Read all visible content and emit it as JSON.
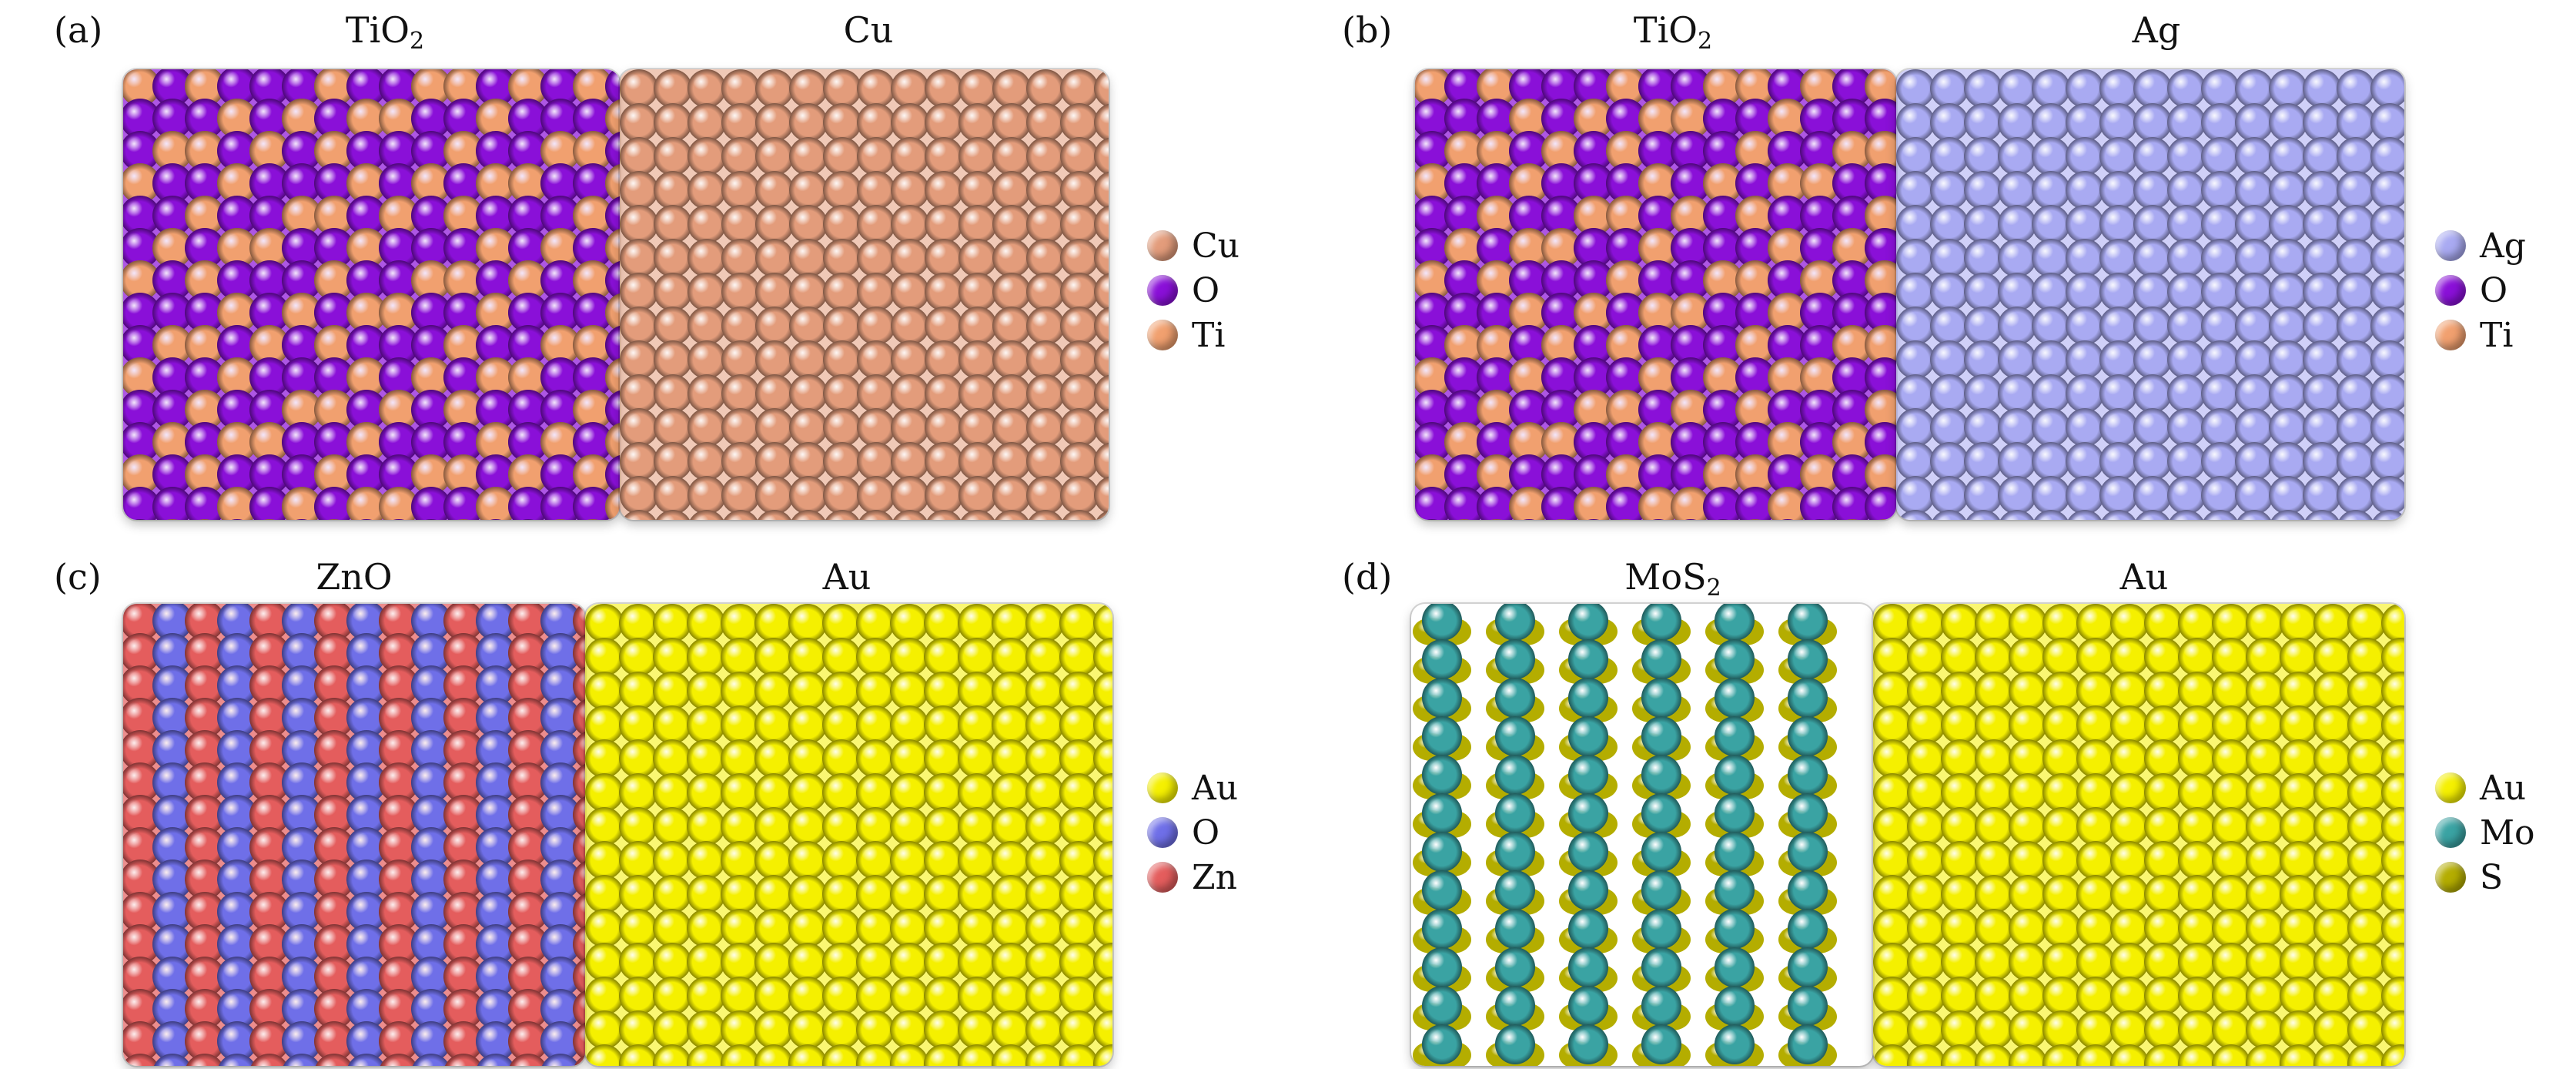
{
  "panels": [
    {
      "id": "a",
      "label": "(a)",
      "left": {
        "name": "TiO",
        "sub": "2",
        "colors": [
          "#8a10d8",
          "#f1a06f"
        ],
        "pattern": "stripes"
      },
      "right": {
        "name": "Cu",
        "sub": "",
        "color": "#e39c7b"
      },
      "legend": [
        {
          "label": "Cu",
          "color": "#e39c7b"
        },
        {
          "label": "O",
          "color": "#8a10d8"
        },
        {
          "label": "Ti",
          "color": "#f1a06f"
        }
      ]
    },
    {
      "id": "b",
      "label": "(b)",
      "left": {
        "name": "TiO",
        "sub": "2",
        "colors": [
          "#8a10d8",
          "#f1a06f"
        ],
        "pattern": "stripes"
      },
      "right": {
        "name": "Ag",
        "sub": "",
        "color": "#a9aaf2"
      },
      "legend": [
        {
          "label": "Ag",
          "color": "#a9aaf2"
        },
        {
          "label": "O",
          "color": "#8a10d8"
        },
        {
          "label": "Ti",
          "color": "#f1a06f"
        }
      ]
    },
    {
      "id": "c",
      "label": "(c)",
      "left": {
        "name": "ZnO",
        "sub": "",
        "colors": [
          "#e45d5d",
          "#6f6fe8"
        ],
        "pattern": "checker"
      },
      "right": {
        "name": "Au",
        "sub": "",
        "color": "#f5f000"
      },
      "legend": [
        {
          "label": "Au",
          "color": "#f5f000"
        },
        {
          "label": "O",
          "color": "#6f6fe8"
        },
        {
          "label": "Zn",
          "color": "#e45d5d"
        }
      ]
    },
    {
      "id": "d",
      "label": "(d)",
      "left": {
        "name": "MoS",
        "sub": "2",
        "colors": [
          "#3aa3a3",
          "#b4ad00"
        ],
        "pattern": "columns"
      },
      "right": {
        "name": "Au",
        "sub": "",
        "color": "#f5f000"
      },
      "legend": [
        {
          "label": "Au",
          "color": "#f5f000"
        },
        {
          "label": "Mo",
          "color": "#3aa3a3"
        },
        {
          "label": "S",
          "color": "#b4ad00"
        }
      ]
    }
  ]
}
